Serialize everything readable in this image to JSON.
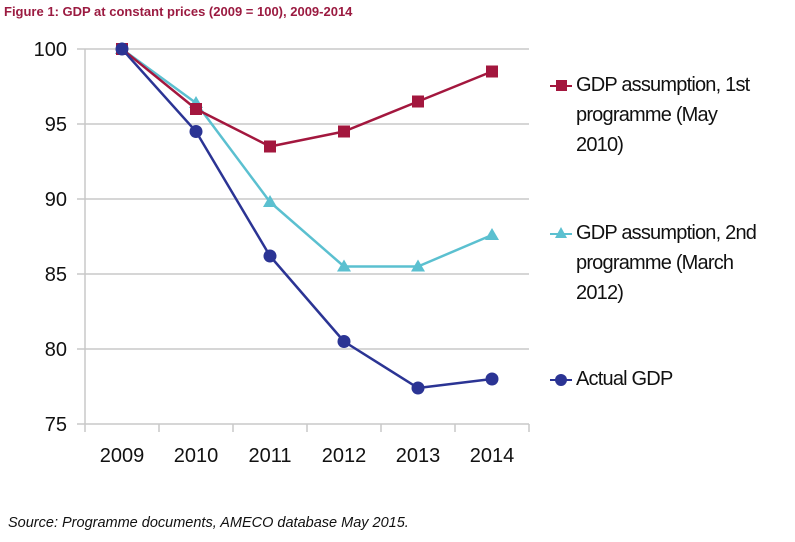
{
  "title": "Figure 1: GDP at constant prices (2009 = 100), 2009-2014",
  "source": "Source: Programme documents, AMECO database May 2015.",
  "chart_data": {
    "type": "line",
    "title": "Figure 1: GDP at constant prices (2009 = 100), 2009-2014",
    "xlabel": "",
    "ylabel": "",
    "categories": [
      "2009",
      "2010",
      "2011",
      "2012",
      "2013",
      "2014"
    ],
    "ylim": [
      75,
      100
    ],
    "yticks": [
      100,
      95,
      90,
      85,
      80,
      75
    ],
    "grid": true,
    "legend_position": "right",
    "series": [
      {
        "name": "GDP assumption, 1st programme (May 2010)",
        "legend_lines": [
          "GDP assumption, 1st",
          "programme (May",
          "2010)"
        ],
        "marker": "square",
        "color": "#a3173e",
        "values": [
          100,
          96.0,
          93.5,
          94.5,
          96.5,
          98.5
        ]
      },
      {
        "name": "GDP assumption, 2nd programme (March 2012)",
        "legend_lines": [
          "GDP assumption, 2nd",
          "programme (March",
          "2012)"
        ],
        "marker": "triangle",
        "color": "#5bc0d0",
        "values": [
          100,
          96.4,
          89.8,
          85.5,
          85.5,
          87.6
        ]
      },
      {
        "name": "Actual GDP",
        "legend_lines": [
          "Actual GDP"
        ],
        "marker": "circle",
        "color": "#2b3494",
        "values": [
          100,
          94.5,
          86.2,
          80.5,
          77.4,
          78.0
        ]
      }
    ]
  }
}
